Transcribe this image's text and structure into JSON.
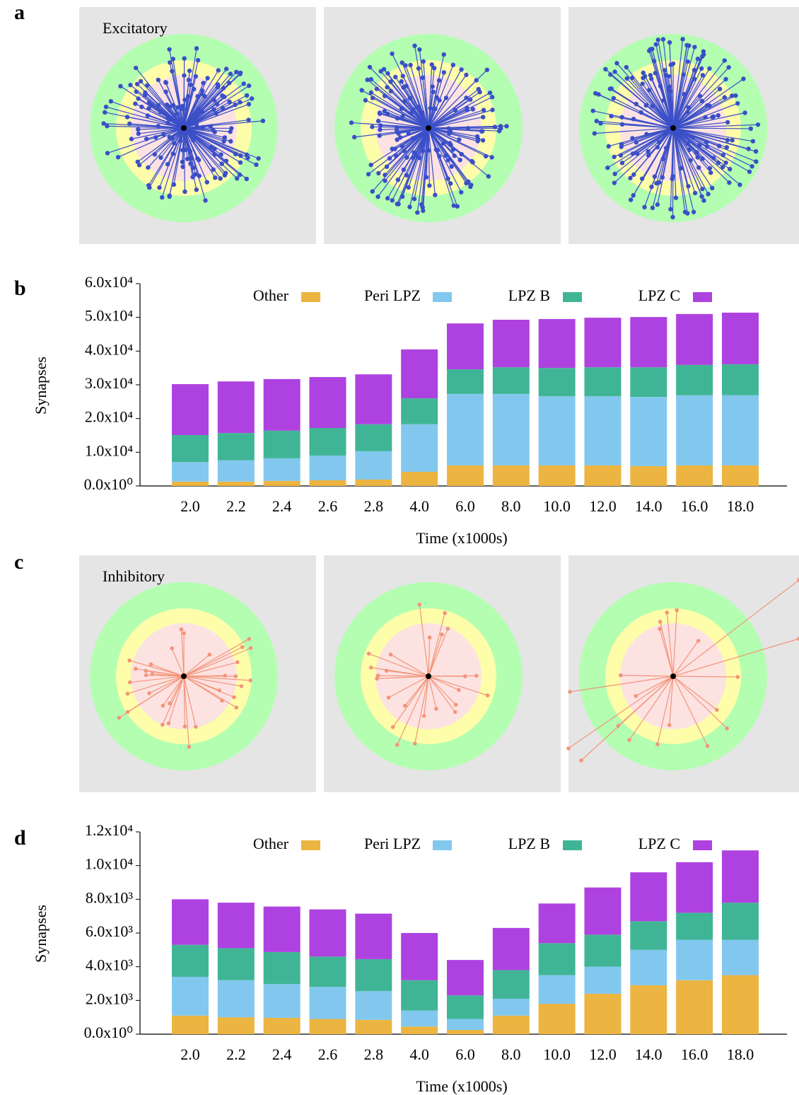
{
  "panels": {
    "a": "a",
    "b": "b",
    "c": "c",
    "d": "d",
    "excitatory": "Excitatory",
    "inhibitory": "Inhibitory"
  },
  "chart_data": [
    {
      "type": "stacked-bar",
      "y_label": "Synapses",
      "x_label": "Time (x1000s)",
      "categories": [
        "2.0",
        "2.2",
        "2.4",
        "2.6",
        "2.8",
        "4.0",
        "6.0",
        "8.0",
        "10.0",
        "12.0",
        "14.0",
        "16.0",
        "18.0"
      ],
      "series": [
        {
          "name": "Other",
          "color": "#ecb440",
          "values": [
            1300,
            1300,
            1500,
            1700,
            1900,
            4200,
            6100,
            6100,
            6100,
            6100,
            5900,
            6100,
            6100
          ]
        },
        {
          "name": "Peri LPZ",
          "color": "#82c8ee",
          "values": [
            5800,
            6300,
            6700,
            7300,
            8400,
            14100,
            21200,
            21200,
            20500,
            20500,
            20500,
            20800,
            20800
          ]
        },
        {
          "name": "LPZ B",
          "color": "#40b596",
          "values": [
            8000,
            8100,
            8200,
            8200,
            8000,
            7700,
            7300,
            7900,
            8400,
            8600,
            8800,
            9000,
            9200
          ]
        },
        {
          "name": "LPZ C",
          "color": "#ae42e0",
          "values": [
            15100,
            15300,
            15300,
            15100,
            14800,
            14500,
            13600,
            14100,
            14500,
            14700,
            14900,
            15100,
            15300
          ]
        }
      ],
      "ylim": [
        0,
        60000
      ],
      "yticks": [
        {
          "value": 0,
          "label": "0.0x10⁰"
        },
        {
          "value": 10000,
          "label": "1.0x10⁴"
        },
        {
          "value": 20000,
          "label": "2.0x10⁴"
        },
        {
          "value": 30000,
          "label": "3.0x10⁴"
        },
        {
          "value": 40000,
          "label": "4.0x10⁴"
        },
        {
          "value": 50000,
          "label": "5.0x10⁴"
        },
        {
          "value": 60000,
          "label": "6.0x10⁴"
        }
      ]
    },
    {
      "type": "stacked-bar",
      "y_label": "Synapses",
      "x_label": "Time (x1000s)",
      "categories": [
        "2.0",
        "2.2",
        "2.4",
        "2.6",
        "2.8",
        "4.0",
        "6.0",
        "8.0",
        "10.0",
        "12.0",
        "14.0",
        "16.0",
        "18.0"
      ],
      "series": [
        {
          "name": "Other",
          "color": "#ecb440",
          "values": [
            1100,
            1000,
            970,
            900,
            850,
            450,
            250,
            1100,
            1800,
            2400,
            2900,
            3200,
            3500
          ]
        },
        {
          "name": "Peri LPZ",
          "color": "#82c8ee",
          "values": [
            2300,
            2200,
            2000,
            1900,
            1700,
            950,
            650,
            1000,
            1700,
            1600,
            2100,
            2400,
            2100
          ]
        },
        {
          "name": "LPZ B",
          "color": "#40b596",
          "values": [
            1900,
            1900,
            1900,
            1800,
            1900,
            1800,
            1400,
            1700,
            1900,
            1900,
            1700,
            1600,
            2200
          ]
        },
        {
          "name": "LPZ C",
          "color": "#ae42e0",
          "values": [
            2700,
            2700,
            2700,
            2800,
            2700,
            2800,
            2100,
            2500,
            2350,
            2800,
            2900,
            3000,
            3100
          ]
        }
      ],
      "ylim": [
        0,
        12000
      ],
      "yticks": [
        {
          "value": 0,
          "label": "0.0x10⁰"
        },
        {
          "value": 2000,
          "label": "2.0x10³"
        },
        {
          "value": 4000,
          "label": "4.0x10³"
        },
        {
          "value": 6000,
          "label": "6.0x10³"
        },
        {
          "value": 8000,
          "label": "8.0x10³"
        },
        {
          "value": 10000,
          "label": "1.0x10⁴"
        },
        {
          "value": 12000,
          "label": "1.2x10⁴"
        }
      ]
    }
  ]
}
